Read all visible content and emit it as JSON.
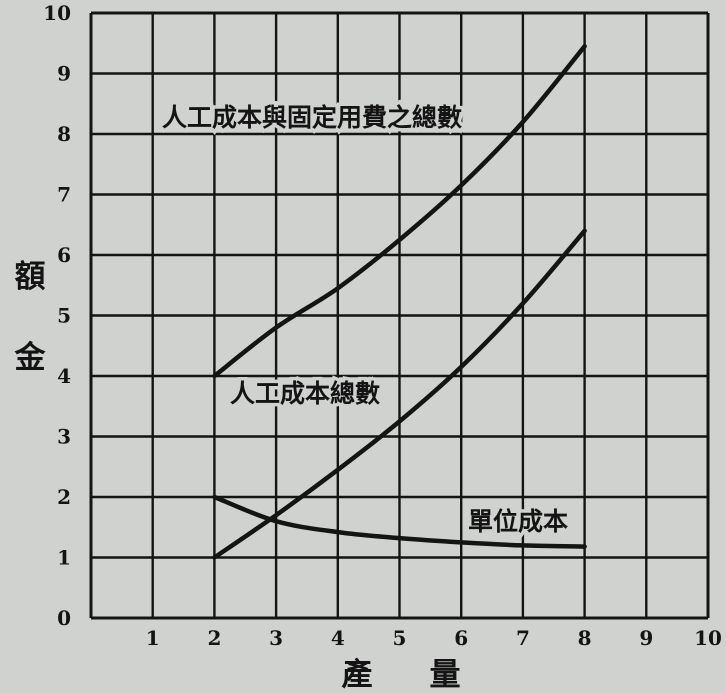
{
  "chart_data": {
    "type": "line",
    "title": "",
    "xlabel": "產量",
    "ylabel": "金額",
    "xlim": [
      0,
      10
    ],
    "ylim": [
      0,
      10
    ],
    "xticks": [
      "0",
      "1",
      "2",
      "3",
      "4",
      "5",
      "6",
      "7",
      "8",
      "9",
      "10"
    ],
    "yticks": [
      "0",
      "1",
      "2",
      "3",
      "4",
      "5",
      "6",
      "7",
      "8",
      "9",
      "10"
    ],
    "grid": true,
    "series": [
      {
        "name": "人工成本與固定用費之總數",
        "x": [
          2,
          3,
          4,
          5,
          6,
          7,
          8
        ],
        "y": [
          4.0,
          4.8,
          5.45,
          6.25,
          7.15,
          8.2,
          9.45
        ]
      },
      {
        "name": "人工成本總數",
        "x": [
          2,
          3,
          4,
          5,
          6,
          7,
          8
        ],
        "y": [
          1.0,
          1.7,
          2.45,
          3.25,
          4.15,
          5.2,
          6.4
        ]
      },
      {
        "name": "單位成本",
        "x": [
          2,
          3,
          4,
          5,
          6,
          7,
          8
        ],
        "y": [
          2.0,
          1.6,
          1.42,
          1.32,
          1.25,
          1.2,
          1.18
        ]
      }
    ],
    "colors": {
      "background": "#cfd2cf",
      "ink": "#141414"
    }
  }
}
